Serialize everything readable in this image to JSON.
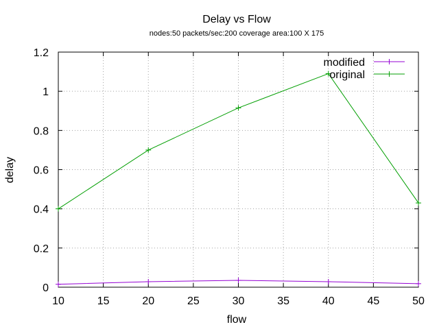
{
  "chart_data": {
    "type": "line",
    "title": "Delay vs Flow",
    "subtitle": "nodes:50  packets/sec:200 coverage area:100 X 175",
    "xlabel": "flow",
    "ylabel": "delay",
    "xlim": [
      10,
      50
    ],
    "ylim": [
      0,
      1.2
    ],
    "xticks": [
      10,
      15,
      20,
      25,
      30,
      35,
      40,
      45,
      50
    ],
    "yticks": [
      0,
      0.2,
      0.4,
      0.6,
      0.8,
      1,
      1.2
    ],
    "xtick_labels": [
      "10",
      "15",
      "20",
      "25",
      "30",
      "35",
      "40",
      "45",
      "50"
    ],
    "ytick_labels": [
      "0",
      "0.2",
      "0.4",
      "0.6",
      "0.8",
      "1",
      "1.2"
    ],
    "grid": true,
    "legend_position": "top-right",
    "series": [
      {
        "name": "modified",
        "color": "#9400d3",
        "x": [
          10,
          20,
          30,
          40,
          50
        ],
        "y": [
          0.015,
          0.028,
          0.035,
          0.028,
          0.018
        ]
      },
      {
        "name": "original",
        "color": "#009e00",
        "x": [
          10,
          20,
          30,
          40,
          50
        ],
        "y": [
          0.4,
          0.7,
          0.915,
          1.09,
          0.43
        ]
      }
    ]
  }
}
